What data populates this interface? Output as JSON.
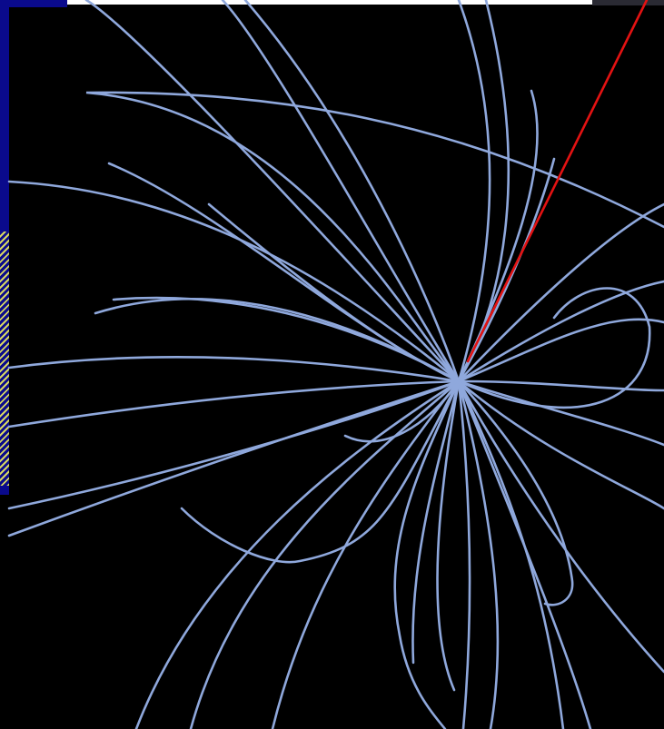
{
  "colors": {
    "background": "#000000",
    "track": "#8fa8dc",
    "highlight_track": "#e31212",
    "edge_blue": "#0a0a8c",
    "edge_yellow": "#d8d860"
  },
  "figure": {
    "kind": "particle-collision-event-display",
    "highlighted_tracks": 1
  }
}
